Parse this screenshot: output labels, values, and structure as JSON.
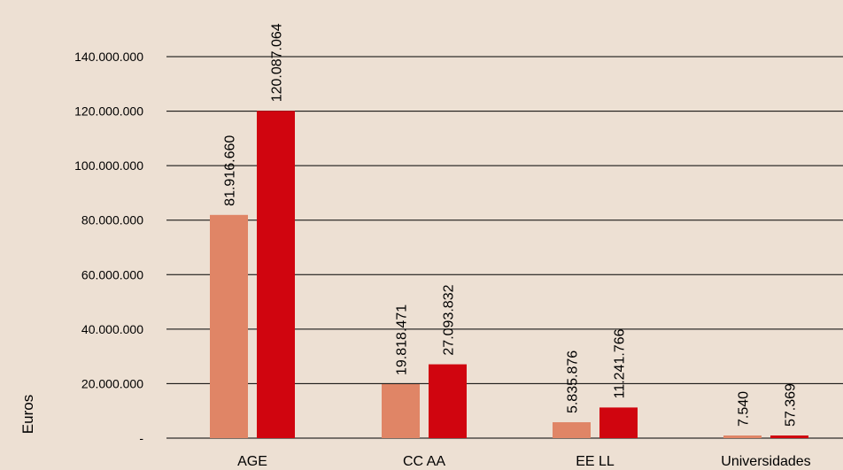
{
  "background_color": "#ede0d3",
  "chart_data": {
    "type": "bar",
    "title": "",
    "xlabel": "",
    "ylabel": "Euros",
    "ylim": [
      0,
      140000000
    ],
    "yticks": [
      {
        "value": 0,
        "label": "-"
      },
      {
        "value": 20000000,
        "label": "20.000.000"
      },
      {
        "value": 40000000,
        "label": "40.000.000"
      },
      {
        "value": 60000000,
        "label": "60.000.000"
      },
      {
        "value": 80000000,
        "label": "80.000.000"
      },
      {
        "value": 100000000,
        "label": "100.000.000"
      },
      {
        "value": 120000000,
        "label": "120.000.000"
      },
      {
        "value": 140000000,
        "label": "140.000.000"
      }
    ],
    "grid": true,
    "legend": "none",
    "categories": [
      "AGE",
      "CC AA",
      "EE LL",
      "Universidades"
    ],
    "series": [
      {
        "color": "#e08566",
        "values": [
          81916660,
          19818471,
          5835876,
          7540
        ],
        "labels": [
          "81.916.660",
          "19.818.471",
          "5.835.876",
          "7.540"
        ]
      },
      {
        "color": "#d0050f",
        "values": [
          120087064,
          27093832,
          11241766,
          57369
        ],
        "labels": [
          "120.087.064",
          "27.093.832",
          "11.241.766",
          "57.369"
        ]
      }
    ]
  }
}
